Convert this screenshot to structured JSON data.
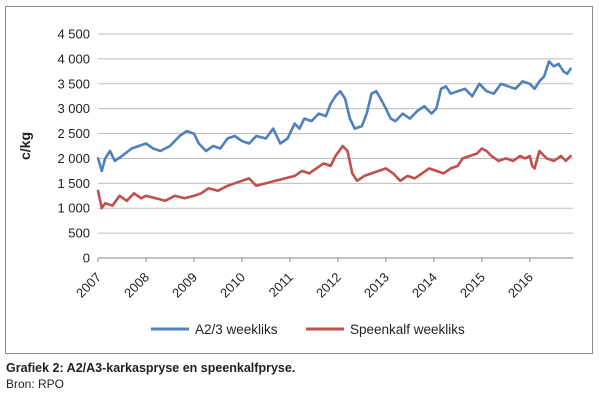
{
  "caption": "Grafiek 2: A2/A3-karkaspryse en speenkalfpryse.",
  "source": "Bron: RPO",
  "chart_data": {
    "type": "line",
    "ylabel": "c/kg",
    "xlabel": "",
    "ylim": [
      0,
      4500
    ],
    "yticks": [
      0,
      500,
      1000,
      1500,
      2000,
      2500,
      3000,
      3500,
      4000,
      4500
    ],
    "ytick_labels": [
      "0",
      "500",
      "1 000",
      "1 500",
      "2 000",
      "2 500",
      "3 000",
      "3 500",
      "4 000",
      "4 500"
    ],
    "xlim": [
      2007,
      2016.9
    ],
    "xticks": [
      2007,
      2008,
      2009,
      2010,
      2011,
      2012,
      2013,
      2014,
      2015,
      2016
    ],
    "xtick_labels": [
      "2007",
      "2008",
      "2009",
      "2010",
      "2011",
      "2012",
      "2013",
      "2014",
      "2015",
      "2016"
    ],
    "grid": true,
    "legend_position": "bottom",
    "series": [
      {
        "name": "A2/3 weekliks",
        "color": "#4f81bd",
        "x": [
          2007.0,
          2007.08,
          2007.15,
          2007.25,
          2007.35,
          2007.5,
          2007.7,
          2007.85,
          2008.0,
          2008.15,
          2008.3,
          2008.5,
          2008.7,
          2008.85,
          2009.0,
          2009.1,
          2009.25,
          2009.4,
          2009.55,
          2009.7,
          2009.85,
          2010.0,
          2010.15,
          2010.3,
          2010.5,
          2010.65,
          2010.8,
          2010.95,
          2011.1,
          2011.2,
          2011.3,
          2011.45,
          2011.6,
          2011.75,
          2011.85,
          2011.95,
          2012.05,
          2012.15,
          2012.25,
          2012.35,
          2012.5,
          2012.6,
          2012.7,
          2012.8,
          2012.92,
          2013.0,
          2013.1,
          2013.2,
          2013.35,
          2013.5,
          2013.65,
          2013.8,
          2013.95,
          2014.05,
          2014.15,
          2014.25,
          2014.35,
          2014.5,
          2014.65,
          2014.8,
          2014.95,
          2015.1,
          2015.25,
          2015.4,
          2015.55,
          2015.7,
          2015.85,
          2016.0,
          2016.1,
          2016.2,
          2016.3,
          2016.4,
          2016.5,
          2016.6,
          2016.7,
          2016.78,
          2016.85
        ],
        "y": [
          2000,
          1750,
          2000,
          2150,
          1950,
          2050,
          2200,
          2250,
          2300,
          2200,
          2150,
          2250,
          2450,
          2550,
          2500,
          2300,
          2150,
          2250,
          2200,
          2400,
          2450,
          2350,
          2300,
          2450,
          2400,
          2600,
          2300,
          2400,
          2700,
          2600,
          2800,
          2750,
          2900,
          2850,
          3100,
          3250,
          3350,
          3200,
          2800,
          2600,
          2650,
          2900,
          3300,
          3350,
          3150,
          3000,
          2800,
          2750,
          2900,
          2800,
          2950,
          3050,
          2900,
          3000,
          3400,
          3450,
          3300,
          3350,
          3400,
          3250,
          3500,
          3350,
          3300,
          3500,
          3450,
          3400,
          3550,
          3500,
          3400,
          3550,
          3650,
          3950,
          3850,
          3900,
          3750,
          3700,
          3800
        ]
      },
      {
        "name": "Speenkalf weekliks",
        "color": "#c0504d",
        "x": [
          2007.0,
          2007.08,
          2007.15,
          2007.3,
          2007.45,
          2007.6,
          2007.75,
          2007.9,
          2008.0,
          2008.2,
          2008.4,
          2008.6,
          2008.8,
          2009.0,
          2009.15,
          2009.3,
          2009.5,
          2009.7,
          2009.85,
          2010.0,
          2010.15,
          2010.3,
          2010.5,
          2010.7,
          2010.9,
          2011.1,
          2011.25,
          2011.4,
          2011.55,
          2011.7,
          2011.85,
          2011.95,
          2012.1,
          2012.2,
          2012.3,
          2012.4,
          2012.55,
          2012.7,
          2012.85,
          2013.0,
          2013.15,
          2013.3,
          2013.45,
          2013.6,
          2013.75,
          2013.9,
          2014.05,
          2014.2,
          2014.35,
          2014.5,
          2014.6,
          2014.75,
          2014.9,
          2015.0,
          2015.1,
          2015.2,
          2015.35,
          2015.5,
          2015.65,
          2015.8,
          2015.9,
          2016.0,
          2016.05,
          2016.1,
          2016.2,
          2016.35,
          2016.5,
          2016.65,
          2016.75,
          2016.85
        ],
        "y": [
          1350,
          1000,
          1100,
          1050,
          1250,
          1150,
          1300,
          1200,
          1250,
          1200,
          1150,
          1250,
          1200,
          1250,
          1300,
          1400,
          1350,
          1450,
          1500,
          1550,
          1600,
          1450,
          1500,
          1550,
          1600,
          1650,
          1750,
          1700,
          1800,
          1900,
          1850,
          2050,
          2250,
          2150,
          1700,
          1550,
          1650,
          1700,
          1750,
          1800,
          1700,
          1550,
          1650,
          1600,
          1700,
          1800,
          1750,
          1700,
          1800,
          1850,
          2000,
          2050,
          2100,
          2200,
          2150,
          2050,
          1950,
          2000,
          1950,
          2050,
          2000,
          2050,
          1850,
          1800,
          2150,
          2000,
          1950,
          2050,
          1950,
          2050
        ]
      }
    ]
  }
}
